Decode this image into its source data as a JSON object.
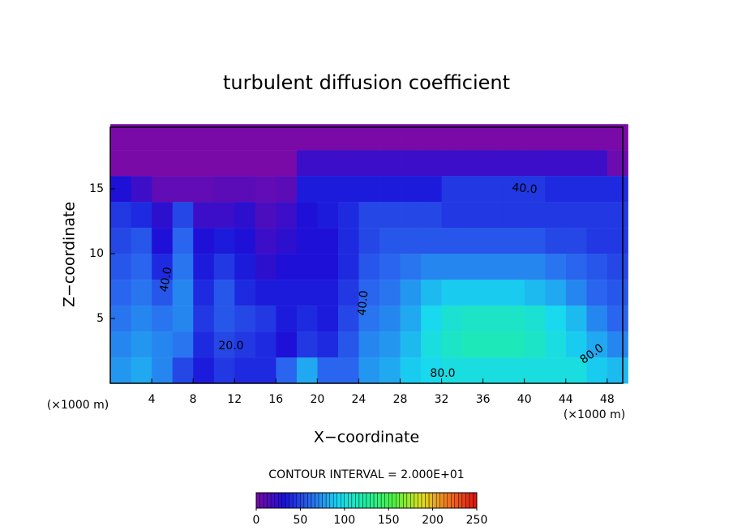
{
  "chart_data": {
    "type": "heatmap",
    "title": "turbulent diffusion coefficient",
    "x_label": "X−coordinate",
    "y_label": "Z−coordinate",
    "x_unit_left": "(×1000 m)",
    "x_unit_right": "(×1000 m)",
    "contour_interval": "CONTOUR INTERVAL = 2.000E+01",
    "contour_labels": [
      "40.0",
      "40.0",
      "40.0",
      "20.0",
      "80.0",
      "80.0"
    ],
    "xlim": [
      0,
      49.5
    ],
    "ylim": [
      0,
      19.75
    ],
    "xticks": [
      4,
      8,
      12,
      16,
      20,
      24,
      28,
      32,
      36,
      40,
      44,
      48
    ],
    "yticks": [
      5,
      10,
      15
    ],
    "x": [
      1,
      3,
      5,
      7,
      9,
      11,
      13,
      15,
      17,
      19,
      21,
      23,
      25,
      27,
      29,
      31,
      33,
      35,
      37,
      39,
      41,
      43,
      45,
      47,
      49
    ],
    "y": [
      19,
      17,
      15,
      13,
      11,
      9,
      7,
      5,
      3,
      1
    ],
    "values": [
      [
        0,
        0,
        0,
        0,
        0,
        0,
        0,
        0,
        0,
        0,
        0,
        0,
        0,
        0,
        0,
        0,
        0,
        0,
        0,
        0,
        0,
        0,
        0,
        0,
        0
      ],
      [
        0,
        0,
        0,
        0,
        0,
        0,
        0,
        0,
        0,
        20,
        20,
        20,
        20,
        20,
        20,
        20,
        20,
        20,
        20,
        20,
        20,
        20,
        20,
        20,
        5
      ],
      [
        30,
        20,
        8,
        8,
        8,
        10,
        10,
        8,
        10,
        35,
        35,
        35,
        35,
        35,
        35,
        35,
        45,
        45,
        45,
        45,
        45,
        40,
        40,
        40,
        40
      ],
      [
        45,
        40,
        25,
        50,
        20,
        20,
        25,
        15,
        20,
        30,
        35,
        40,
        50,
        50,
        50,
        50,
        45,
        45,
        45,
        45,
        45,
        45,
        45,
        45,
        45
      ],
      [
        50,
        55,
        30,
        60,
        30,
        35,
        30,
        20,
        25,
        30,
        30,
        40,
        50,
        55,
        55,
        55,
        55,
        55,
        55,
        55,
        55,
        50,
        50,
        45,
        45
      ],
      [
        55,
        60,
        40,
        65,
        35,
        45,
        35,
        25,
        30,
        30,
        30,
        40,
        55,
        60,
        65,
        70,
        70,
        70,
        70,
        70,
        70,
        65,
        60,
        55,
        50
      ],
      [
        60,
        65,
        55,
        70,
        40,
        55,
        40,
        35,
        35,
        35,
        35,
        45,
        60,
        65,
        75,
        85,
        90,
        90,
        90,
        90,
        85,
        80,
        70,
        60,
        55
      ],
      [
        65,
        70,
        65,
        70,
        45,
        55,
        50,
        45,
        35,
        40,
        35,
        50,
        65,
        70,
        80,
        95,
        105,
        110,
        110,
        110,
        105,
        95,
        85,
        70,
        60
      ],
      [
        70,
        75,
        70,
        65,
        40,
        50,
        45,
        40,
        30,
        45,
        40,
        55,
        70,
        75,
        85,
        100,
        110,
        115,
        115,
        115,
        110,
        100,
        90,
        80,
        70
      ],
      [
        75,
        80,
        70,
        50,
        35,
        45,
        40,
        40,
        60,
        80,
        60,
        60,
        75,
        80,
        90,
        95,
        100,
        100,
        100,
        100,
        100,
        100,
        100,
        90,
        85
      ]
    ],
    "colorbar_lim": [
      0,
      250
    ],
    "colorbar_ticks": [
      0,
      50,
      100,
      150,
      200,
      250
    ],
    "colormap": [
      "#7a0aa8",
      "#1a10d8",
      "#2a6cf0",
      "#18d8f0",
      "#20f0a0",
      "#50f040",
      "#e0e020",
      "#f07020",
      "#e01010"
    ]
  }
}
